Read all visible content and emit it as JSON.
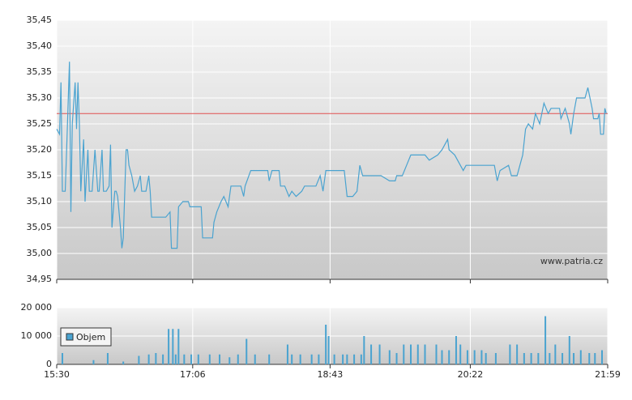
{
  "chart_data": [
    {
      "type": "line",
      "color": "#4aa3d0",
      "grid": true,
      "annotation": "www.patria.cz",
      "reference_line": {
        "value": 35.27,
        "color": "#e05050"
      },
      "xlim": [
        0,
        389
      ],
      "xticks": [
        0,
        96,
        193,
        292,
        389
      ],
      "ylim": [
        34.95,
        35.45
      ],
      "yticks": [
        {
          "value": 34.95,
          "label": "34,95"
        },
        {
          "value": 35.0,
          "label": "35,00"
        },
        {
          "value": 35.05,
          "label": "35,05"
        },
        {
          "value": 35.1,
          "label": "35,10"
        },
        {
          "value": 35.15,
          "label": "35,15"
        },
        {
          "value": 35.2,
          "label": "35,20"
        },
        {
          "value": 35.25,
          "label": "35,25"
        },
        {
          "value": 35.3,
          "label": "35,30"
        },
        {
          "value": 35.35,
          "label": "35,35"
        },
        {
          "value": 35.4,
          "label": "35,40"
        },
        {
          "value": 35.45,
          "label": "35,45"
        }
      ],
      "x": [
        0,
        2,
        3,
        4,
        6,
        7,
        9,
        10,
        11,
        13,
        14,
        15,
        16,
        17,
        19,
        20,
        22,
        23,
        25,
        27,
        29,
        30,
        32,
        33,
        35,
        37,
        38,
        39,
        41,
        42,
        43,
        45,
        46,
        47,
        49,
        50,
        51,
        53,
        55,
        57,
        59,
        60,
        63,
        65,
        66,
        67,
        77,
        80,
        81,
        85,
        86,
        89,
        93,
        94,
        102,
        103,
        110,
        111,
        113,
        116,
        118,
        121,
        123,
        130,
        132,
        133,
        137,
        149,
        150,
        152,
        157,
        158,
        161,
        164,
        166,
        169,
        173,
        175,
        183,
        186,
        188,
        190,
        203,
        205,
        209,
        212,
        214,
        216,
        229,
        235,
        239,
        240,
        244,
        247,
        250,
        260,
        263,
        269,
        272,
        276,
        277,
        281,
        285,
        287,
        289,
        309,
        311,
        313,
        319,
        321,
        325,
        327,
        329,
        331,
        333,
        336,
        338,
        341,
        344,
        347,
        349,
        355,
        356,
        359,
        362,
        363,
        365,
        367,
        373,
        375,
        378,
        379,
        382,
        383,
        384,
        386,
        387,
        388
      ],
      "values": [
        35.24,
        35.23,
        35.33,
        35.12,
        35.12,
        35.2,
        35.37,
        35.08,
        35.25,
        35.33,
        35.24,
        35.33,
        35.25,
        35.12,
        35.22,
        35.1,
        35.2,
        35.12,
        35.12,
        35.2,
        35.12,
        35.12,
        35.2,
        35.12,
        35.12,
        35.13,
        35.21,
        35.05,
        35.12,
        35.12,
        35.11,
        35.05,
        35.01,
        35.03,
        35.2,
        35.2,
        35.17,
        35.15,
        35.12,
        35.13,
        35.15,
        35.12,
        35.12,
        35.15,
        35.12,
        35.07,
        35.07,
        35.08,
        35.01,
        35.01,
        35.09,
        35.1,
        35.1,
        35.09,
        35.09,
        35.03,
        35.03,
        35.06,
        35.08,
        35.1,
        35.11,
        35.09,
        35.13,
        35.13,
        35.11,
        35.13,
        35.16,
        35.16,
        35.14,
        35.16,
        35.16,
        35.13,
        35.13,
        35.11,
        35.12,
        35.11,
        35.12,
        35.13,
        35.13,
        35.15,
        35.12,
        35.16,
        35.16,
        35.11,
        35.11,
        35.12,
        35.17,
        35.15,
        35.15,
        35.14,
        35.14,
        35.15,
        35.15,
        35.17,
        35.19,
        35.19,
        35.18,
        35.19,
        35.2,
        35.22,
        35.2,
        35.19,
        35.17,
        35.16,
        35.17,
        35.17,
        35.14,
        35.16,
        35.17,
        35.15,
        35.15,
        35.17,
        35.19,
        35.24,
        35.25,
        35.24,
        35.27,
        35.25,
        35.29,
        35.27,
        35.28,
        35.28,
        35.26,
        35.28,
        35.25,
        35.23,
        35.27,
        35.3,
        35.3,
        35.32,
        35.28,
        35.26,
        35.26,
        35.27,
        35.23,
        35.23,
        35.28,
        35.27
      ]
    },
    {
      "type": "bar",
      "grid": true,
      "legend": "left",
      "xlim": [
        0,
        389
      ],
      "xticks": [
        {
          "value": 0,
          "label": "15:30"
        },
        {
          "value": 96,
          "label": "17:06"
        },
        {
          "value": 193,
          "label": "18:43"
        },
        {
          "value": 292,
          "label": "20:22"
        },
        {
          "value": 389,
          "label": "21:59"
        }
      ],
      "ylim": [
        0,
        20000
      ],
      "yticks": [
        0,
        {
          "value": 10000,
          "label": "10 000"
        },
        {
          "value": 20000,
          "label": "20 000"
        }
      ],
      "x": [
        4,
        26,
        36,
        47,
        58,
        65,
        70,
        75,
        79,
        82,
        84,
        86,
        90,
        95,
        100,
        108,
        115,
        122,
        128,
        134,
        140,
        150,
        163,
        166,
        172,
        180,
        185,
        190,
        192,
        196,
        202,
        205,
        210,
        215,
        217,
        222,
        228,
        235,
        240,
        245,
        250,
        255,
        260,
        268,
        272,
        277,
        282,
        285,
        290,
        295,
        300,
        303,
        310,
        320,
        325,
        330,
        335,
        340,
        345,
        348,
        352,
        357,
        362,
        365,
        370,
        376,
        380,
        385
      ],
      "series": [
        {
          "name": "Objem",
          "color": "#4aa3d0",
          "values": [
            4000,
            1500,
            4000,
            1000,
            3000,
            3500,
            4000,
            3500,
            12500,
            12500,
            3500,
            12500,
            3500,
            3500,
            3500,
            3500,
            3500,
            2500,
            3500,
            9000,
            3500,
            3500,
            7000,
            3500,
            3500,
            3500,
            3500,
            14000,
            10000,
            3500,
            3500,
            3500,
            3500,
            3500,
            10000,
            7000,
            7000,
            5000,
            4000,
            7000,
            7000,
            7000,
            7000,
            7000,
            5000,
            5000,
            10000,
            7000,
            5000,
            5000,
            5000,
            4000,
            4000,
            7000,
            7000,
            4000,
            4000,
            4000,
            17000,
            4000,
            7000,
            4000,
            10000,
            4000,
            5000,
            4000,
            4000,
            5000
          ]
        }
      ]
    }
  ]
}
